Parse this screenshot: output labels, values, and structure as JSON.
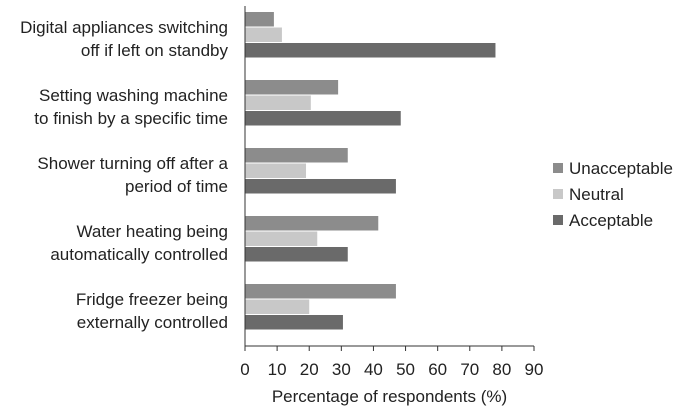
{
  "chart_data": {
    "type": "bar",
    "orientation": "horizontal",
    "categories": [
      [
        "Digital appliances switching",
        "off if left on standby"
      ],
      [
        "Setting washing machine",
        "to finish by a specific time"
      ],
      [
        "Shower turning off after a",
        "period of time"
      ],
      [
        "Water heating being",
        "automatically controlled"
      ],
      [
        "Fridge freezer being",
        "externally controlled"
      ]
    ],
    "series": [
      {
        "name": "Unacceptable",
        "color": "#8c8c8c",
        "values": [
          9,
          29,
          32,
          41.5,
          47
        ]
      },
      {
        "name": "Neutral",
        "color": "#c8c8c8",
        "values": [
          11.5,
          20.5,
          19,
          22.5,
          20
        ]
      },
      {
        "name": "Acceptable",
        "color": "#6a6a6a",
        "values": [
          78,
          48.5,
          47,
          32,
          30.5
        ]
      }
    ],
    "xlabel": "Percentage of respondents (%)",
    "ylabel": "",
    "xlim": [
      0,
      90
    ],
    "xticks": [
      0,
      10,
      20,
      30,
      40,
      50,
      60,
      70,
      80,
      90
    ],
    "grid": false,
    "legend_position": "right"
  }
}
